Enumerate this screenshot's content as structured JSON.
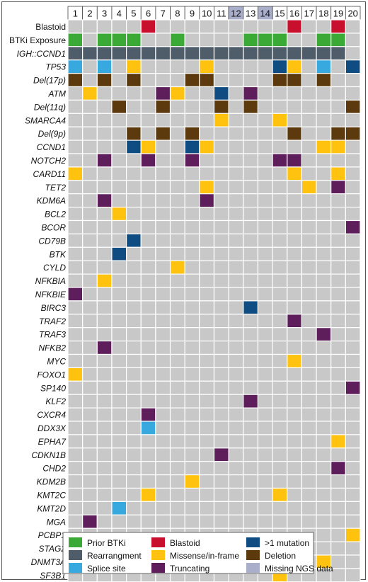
{
  "chart_data": {
    "type": "heatmap",
    "columns": [
      "1",
      "2",
      "3",
      "4",
      "5",
      "6",
      "7",
      "8",
      "9",
      "10",
      "11",
      "12",
      "13",
      "14",
      "15",
      "16",
      "17",
      "18",
      "19",
      "20"
    ],
    "missing_ngs_columns": [
      "12",
      "14"
    ],
    "rows": [
      {
        "label": "Blastoid",
        "italic": false,
        "cells": {
          "6": "blastoid",
          "16": "blastoid",
          "19": "blastoid"
        }
      },
      {
        "label": "BTKi Exposure",
        "italic": false,
        "cells": {
          "1": "prior_btki",
          "3": "prior_btki",
          "4": "prior_btki",
          "5": "prior_btki",
          "8": "prior_btki",
          "13": "prior_btki",
          "14": "prior_btki",
          "15": "prior_btki",
          "18": "prior_btki",
          "19": "prior_btki"
        }
      },
      {
        "label": "IGH::CCND1",
        "italic": true,
        "cells": {
          "1": "rearrangement",
          "2": "rearrangement",
          "3": "rearrangement",
          "4": "rearrangement",
          "5": "rearrangement",
          "6": "rearrangement",
          "7": "rearrangement",
          "8": "rearrangement",
          "9": "rearrangement",
          "10": "rearrangement",
          "11": "rearrangement",
          "12": "rearrangement",
          "13": "rearrangement",
          "14": "rearrangement",
          "15": "rearrangement",
          "16": "rearrangement",
          "17": "rearrangement",
          "18": "rearrangement",
          "19": "rearrangement"
        }
      },
      {
        "label": "TP53",
        "italic": true,
        "cells": {
          "1": "splice",
          "3": "splice",
          "5": "missense",
          "10": "missense",
          "15": "multi",
          "16": "missense",
          "18": "splice",
          "20": "multi"
        }
      },
      {
        "label": "Del(17p)",
        "italic": true,
        "cells": {
          "1": "deletion",
          "3": "deletion",
          "5": "deletion",
          "9": "deletion",
          "10": "deletion",
          "15": "deletion",
          "16": "deletion",
          "18": "deletion"
        }
      },
      {
        "label": "ATM",
        "italic": true,
        "cells": {
          "2": "missense",
          "7": "truncating",
          "8": "missense",
          "11": "multi",
          "13": "truncating"
        }
      },
      {
        "label": "Del(11q)",
        "italic": true,
        "cells": {
          "4": "deletion",
          "7": "deletion",
          "11": "deletion",
          "13": "deletion",
          "20": "deletion"
        }
      },
      {
        "label": "SMARCA4",
        "italic": true,
        "cells": {
          "11": "missense",
          "15": "missense"
        }
      },
      {
        "label": "Del(9p)",
        "italic": true,
        "cells": {
          "5": "deletion",
          "7": "deletion",
          "9": "deletion",
          "16": "deletion",
          "19": "deletion",
          "20": "deletion"
        }
      },
      {
        "label": "CCND1",
        "italic": true,
        "cells": {
          "5": "multi",
          "6": "missense",
          "9": "multi",
          "10": "missense",
          "18": "missense",
          "19": "missense"
        }
      },
      {
        "label": "NOTCH2",
        "italic": true,
        "cells": {
          "3": "truncating",
          "6": "truncating",
          "9": "truncating",
          "15": "truncating",
          "16": "truncating"
        }
      },
      {
        "label": "CARD11",
        "italic": true,
        "cells": {
          "1": "missense",
          "16": "missense",
          "19": "missense"
        }
      },
      {
        "label": "TET2",
        "italic": true,
        "cells": {
          "10": "missense",
          "17": "missense",
          "19": "truncating"
        }
      },
      {
        "label": "KDM6A",
        "italic": true,
        "cells": {
          "3": "truncating",
          "10": "truncating"
        }
      },
      {
        "label": "BCL2",
        "italic": true,
        "cells": {
          "4": "missense"
        }
      },
      {
        "label": "BCOR",
        "italic": true,
        "cells": {
          "20": "truncating"
        }
      },
      {
        "label": "CD79B",
        "italic": true,
        "cells": {
          "5": "multi"
        }
      },
      {
        "label": "BTK",
        "italic": true,
        "cells": {
          "4": "multi"
        }
      },
      {
        "label": "CYLD",
        "italic": true,
        "cells": {
          "8": "missense"
        }
      },
      {
        "label": "NFKBIA",
        "italic": true,
        "cells": {
          "3": "missense"
        }
      },
      {
        "label": "NFKBIE",
        "italic": true,
        "cells": {
          "1": "truncating"
        }
      },
      {
        "label": "BIRC3",
        "italic": true,
        "cells": {
          "13": "multi"
        }
      },
      {
        "label": "TRAF2",
        "italic": true,
        "cells": {
          "16": "truncating"
        }
      },
      {
        "label": "TRAF3",
        "italic": true,
        "cells": {
          "18": "truncating"
        }
      },
      {
        "label": "NFKB2",
        "italic": true,
        "cells": {
          "3": "truncating"
        }
      },
      {
        "label": "MYC",
        "italic": true,
        "cells": {
          "16": "missense"
        }
      },
      {
        "label": "FOXO1",
        "italic": true,
        "cells": {
          "1": "missense"
        }
      },
      {
        "label": "SP140",
        "italic": true,
        "cells": {
          "20": "truncating"
        }
      },
      {
        "label": "KLF2",
        "italic": true,
        "cells": {
          "13": "truncating"
        }
      },
      {
        "label": "CXCR4",
        "italic": true,
        "cells": {
          "6": "truncating"
        }
      },
      {
        "label": "DDX3X",
        "italic": true,
        "cells": {
          "6": "splice"
        }
      },
      {
        "label": "EPHA7",
        "italic": true,
        "cells": {
          "19": "missense"
        }
      },
      {
        "label": "CDKN1B",
        "italic": true,
        "cells": {
          "11": "truncating"
        }
      },
      {
        "label": "CHD2",
        "italic": true,
        "cells": {
          "19": "truncating"
        }
      },
      {
        "label": "KDM2B",
        "italic": true,
        "cells": {
          "9": "missense"
        }
      },
      {
        "label": "KMT2C",
        "italic": true,
        "cells": {
          "6": "missense",
          "15": "missense"
        }
      },
      {
        "label": "KMT2D",
        "italic": true,
        "cells": {
          "4": "splice"
        }
      },
      {
        "label": "MGA",
        "italic": true,
        "cells": {
          "2": "truncating"
        }
      },
      {
        "label": "PCBP1",
        "italic": true,
        "cells": {
          "20": "missense"
        }
      },
      {
        "label": "STAG2",
        "italic": true,
        "cells": {
          "4": "missense"
        }
      },
      {
        "label": "DNMT3A",
        "italic": true,
        "cells": {
          "4": "multi",
          "18": "missense"
        }
      },
      {
        "label": "SF3B1",
        "italic": true,
        "cells": {
          "15": "missense"
        }
      }
    ],
    "legend": [
      {
        "key": "prior_btki",
        "label": "Prior BTKi"
      },
      {
        "key": "blastoid",
        "label": "Blastoid"
      },
      {
        "key": "multi",
        "label": ">1 mutation"
      },
      {
        "key": "rearrangement",
        "label": "Rearrangment"
      },
      {
        "key": "missense",
        "label": "Missense/in-frame"
      },
      {
        "key": "deletion",
        "label": "Deletion"
      },
      {
        "key": "splice",
        "label": "Splice site"
      },
      {
        "key": "truncating",
        "label": "Truncating"
      },
      {
        "key": "missing",
        "label": "Missing NGS data"
      }
    ],
    "colors": {
      "empty": "#c8c8c8",
      "prior_btki": "#3aa935",
      "blastoid": "#c8102e",
      "multi": "#0f4c81",
      "rearrangement": "#4f5d6b",
      "missense": "#ffc20e",
      "deletion": "#5c3a0e",
      "splice": "#38a9df",
      "truncating": "#5e1e5b",
      "missing": "#a9aecb"
    }
  }
}
